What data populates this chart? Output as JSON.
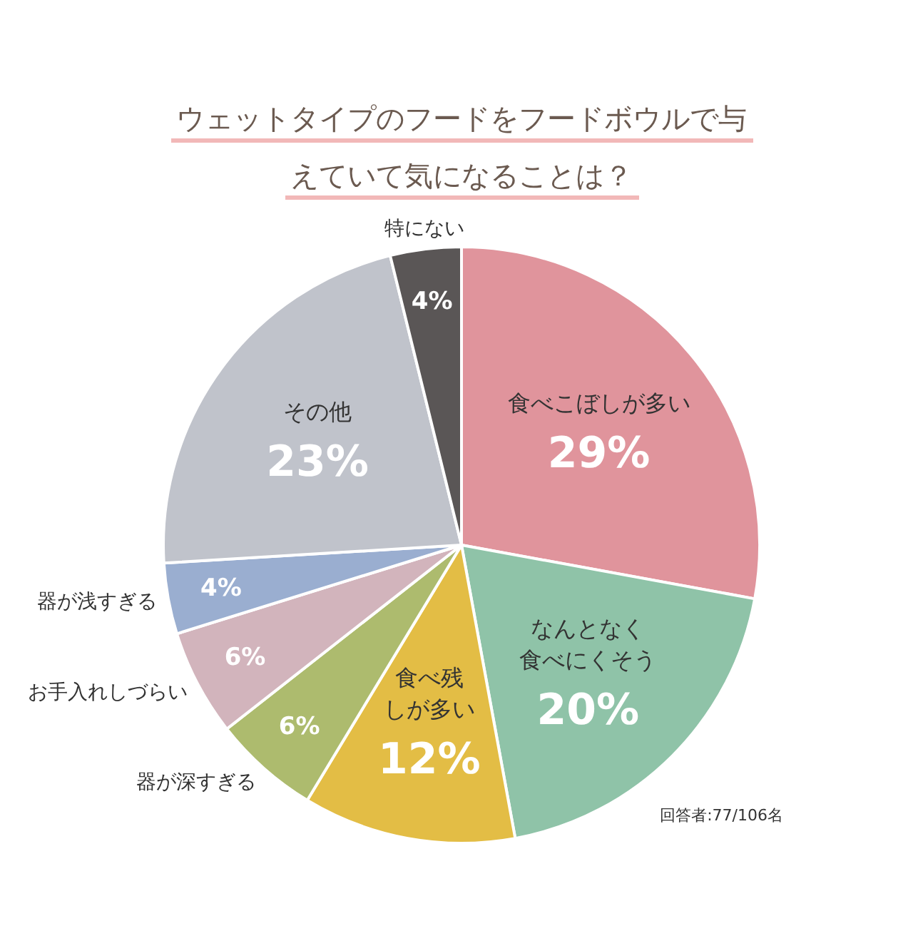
{
  "chart_data": {
    "type": "pie",
    "title": "ウェットタイプのフードをフードボウルで与えていて気になることは？",
    "categories": [
      "食べこぼしが多い",
      "なんとなく食べにくそう",
      "食べ残しが多い",
      "器が深すぎる",
      "お手入れしづらい",
      "器が浅すぎる",
      "その他",
      "特にない"
    ],
    "values": [
      29,
      20,
      12,
      6,
      6,
      4,
      23,
      4
    ],
    "colors": [
      "#e0949c",
      "#8fc3a8",
      "#e3bd45",
      "#adbb6e",
      "#d2b4bc",
      "#9aaed0",
      "#c0c3cb",
      "#5a5656"
    ],
    "value_labels": [
      "29%",
      "20%",
      "12%",
      "6%",
      "6%",
      "4%",
      "23%",
      "4%"
    ],
    "legend": false,
    "annotations": [
      "回答者:77/106名"
    ]
  }
}
